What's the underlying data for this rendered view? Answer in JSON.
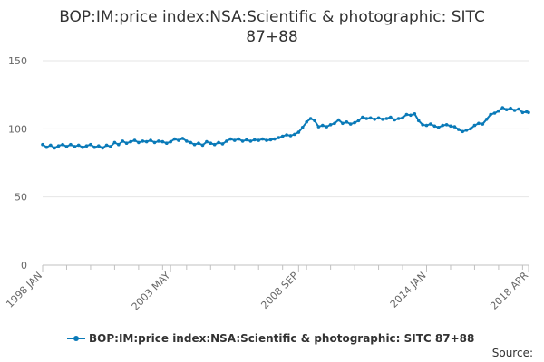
{
  "chart_data": {
    "type": "line",
    "title_lines": [
      "BOP:IM:price index:NSA:Scientific & photographic: SITC",
      "87+88"
    ],
    "xlabel": "",
    "ylabel": "",
    "x_ticks": [
      "1998 JAN",
      "2003 MAY",
      "2008 SEP",
      "2014 JAN",
      "2018 APR"
    ],
    "y_ticks": [
      0,
      50,
      100,
      150
    ],
    "ylim": [
      0,
      150
    ],
    "xlim": [
      "1998-01",
      "2018-04"
    ],
    "grid": true,
    "legend_position": "bottom",
    "series": [
      {
        "name": "BOP:IM:price index:NSA:Scientific & photographic: SITC 87+88",
        "color": "#0a7ab8",
        "points": [
          [
            "1998-01",
            88.5
          ],
          [
            "1998-03",
            86.5
          ],
          [
            "1998-05",
            88.0
          ],
          [
            "1998-07",
            86.0
          ],
          [
            "1998-09",
            87.5
          ],
          [
            "1998-11",
            88.5
          ],
          [
            "1999-01",
            87.0
          ],
          [
            "1999-03",
            88.5
          ],
          [
            "1999-05",
            87.0
          ],
          [
            "1999-07",
            88.0
          ],
          [
            "1999-09",
            86.5
          ],
          [
            "1999-11",
            87.5
          ],
          [
            "2000-01",
            88.5
          ],
          [
            "2000-03",
            86.5
          ],
          [
            "2000-05",
            87.5
          ],
          [
            "2000-07",
            86.0
          ],
          [
            "2000-09",
            88.0
          ],
          [
            "2000-11",
            87.0
          ],
          [
            "2001-01",
            90.0
          ],
          [
            "2001-03",
            88.5
          ],
          [
            "2001-05",
            91.0
          ],
          [
            "2001-07",
            89.5
          ],
          [
            "2001-09",
            90.5
          ],
          [
            "2001-11",
            91.5
          ],
          [
            "2002-01",
            90.0
          ],
          [
            "2002-03",
            91.0
          ],
          [
            "2002-05",
            90.5
          ],
          [
            "2002-07",
            91.5
          ],
          [
            "2002-09",
            90.0
          ],
          [
            "2002-11",
            91.0
          ],
          [
            "2003-01",
            90.5
          ],
          [
            "2003-03",
            89.5
          ],
          [
            "2003-05",
            90.5
          ],
          [
            "2003-07",
            92.5
          ],
          [
            "2003-09",
            91.5
          ],
          [
            "2003-11",
            93.0
          ],
          [
            "2004-01",
            91.0
          ],
          [
            "2004-03",
            90.0
          ],
          [
            "2004-05",
            88.5
          ],
          [
            "2004-07",
            89.5
          ],
          [
            "2004-09",
            88.0
          ],
          [
            "2004-11",
            90.5
          ],
          [
            "2005-01",
            89.5
          ],
          [
            "2005-03",
            88.5
          ],
          [
            "2005-05",
            90.0
          ],
          [
            "2005-07",
            89.0
          ],
          [
            "2005-09",
            91.0
          ],
          [
            "2005-11",
            92.5
          ],
          [
            "2006-01",
            91.5
          ],
          [
            "2006-03",
            92.5
          ],
          [
            "2006-05",
            91.0
          ],
          [
            "2006-07",
            92.0
          ],
          [
            "2006-09",
            91.0
          ],
          [
            "2006-11",
            92.0
          ],
          [
            "2007-01",
            91.5
          ],
          [
            "2007-03",
            92.5
          ],
          [
            "2007-05",
            91.5
          ],
          [
            "2007-07",
            92.0
          ],
          [
            "2007-09",
            92.5
          ],
          [
            "2007-11",
            93.5
          ],
          [
            "2008-01",
            94.5
          ],
          [
            "2008-03",
            95.5
          ],
          [
            "2008-05",
            95.0
          ],
          [
            "2008-07",
            96.0
          ],
          [
            "2008-09",
            97.5
          ],
          [
            "2008-11",
            101.0
          ],
          [
            "2009-01",
            105.0
          ],
          [
            "2009-03",
            107.5
          ],
          [
            "2009-05",
            106.0
          ],
          [
            "2009-07",
            101.5
          ],
          [
            "2009-09",
            102.5
          ],
          [
            "2009-11",
            101.5
          ],
          [
            "2010-01",
            103.0
          ],
          [
            "2010-03",
            104.0
          ],
          [
            "2010-05",
            106.5
          ],
          [
            "2010-07",
            104.0
          ],
          [
            "2010-09",
            105.0
          ],
          [
            "2010-11",
            103.5
          ],
          [
            "2011-01",
            104.5
          ],
          [
            "2011-03",
            106.0
          ],
          [
            "2011-05",
            108.5
          ],
          [
            "2011-07",
            107.5
          ],
          [
            "2011-09",
            108.0
          ],
          [
            "2011-11",
            107.0
          ],
          [
            "2012-01",
            108.0
          ],
          [
            "2012-03",
            107.0
          ],
          [
            "2012-05",
            107.5
          ],
          [
            "2012-07",
            108.5
          ],
          [
            "2012-09",
            106.5
          ],
          [
            "2012-11",
            107.5
          ],
          [
            "2013-01",
            108.0
          ],
          [
            "2013-03",
            110.5
          ],
          [
            "2013-05",
            110.0
          ],
          [
            "2013-07",
            111.0
          ],
          [
            "2013-09",
            106.0
          ],
          [
            "2013-11",
            103.0
          ],
          [
            "2014-01",
            102.5
          ],
          [
            "2014-03",
            103.5
          ],
          [
            "2014-05",
            102.0
          ],
          [
            "2014-07",
            101.0
          ],
          [
            "2014-09",
            102.5
          ],
          [
            "2014-11",
            103.0
          ],
          [
            "2015-01",
            102.0
          ],
          [
            "2015-03",
            101.5
          ],
          [
            "2015-05",
            99.5
          ],
          [
            "2015-07",
            98.0
          ],
          [
            "2015-09",
            99.0
          ],
          [
            "2015-11",
            100.0
          ],
          [
            "2016-01",
            102.5
          ],
          [
            "2016-03",
            104.0
          ],
          [
            "2016-05",
            103.5
          ],
          [
            "2016-07",
            107.0
          ],
          [
            "2016-09",
            110.5
          ],
          [
            "2016-11",
            111.5
          ],
          [
            "2017-01",
            113.0
          ],
          [
            "2017-03",
            115.5
          ],
          [
            "2017-05",
            114.0
          ],
          [
            "2017-07",
            115.0
          ],
          [
            "2017-09",
            113.5
          ],
          [
            "2017-11",
            114.5
          ],
          [
            "2018-01",
            112.0
          ],
          [
            "2018-03",
            112.5
          ],
          [
            "2018-04",
            112.0
          ]
        ]
      }
    ],
    "source_label": "Source:"
  }
}
